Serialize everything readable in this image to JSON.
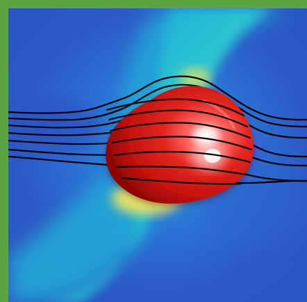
{
  "image": {
    "subject": "red-droplet-in-flow-field",
    "frame_color": "#5aa441",
    "colors": {
      "deep_blue": "#2d5cc8",
      "blue": "#2f79d8",
      "cyan": "#20b8d8",
      "aqua": "#39d2c4",
      "green": "#49d76e",
      "yellow": "#f1e45f",
      "magenta": "#d000d0",
      "red": "#e0231f",
      "streamline": "#050505"
    }
  }
}
